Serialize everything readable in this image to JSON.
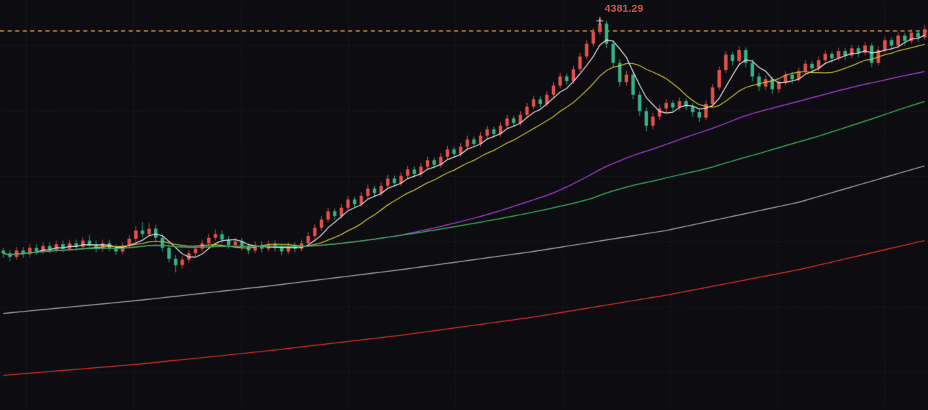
{
  "chart_data": {
    "type": "candlestick",
    "title": "",
    "xlabel": "",
    "ylabel": "",
    "ylim": [
      3950,
      4400
    ],
    "legend_position": "none",
    "grid": {
      "on": true,
      "x_start": 38,
      "x_step": 156,
      "y_start": 66,
      "y_step": 95
    },
    "colors": {
      "background": "#0d0d11",
      "grid": "#2b2b33",
      "up": "#e4514b",
      "down": "#36b383",
      "reference_line": "#f2a33c",
      "peak_label": "#d5544c",
      "peak_marker": "#f0f0f0"
    },
    "reference_line": {
      "price": 4366,
      "style": "dashed"
    },
    "annotations": {
      "peak_label": {
        "text": "4381.29",
        "candle_index": 90,
        "price": 4381.29
      },
      "peak_marker": {
        "candle_index": 90,
        "price": 4377,
        "glyph": "+"
      }
    },
    "moving_averages": [
      {
        "name": "MA5",
        "period": 5,
        "color": "#ededed",
        "width": 1.3
      },
      {
        "name": "MA13",
        "period": 13,
        "color": "#d4c735",
        "width": 1.3
      },
      {
        "name": "MA60",
        "period": 60,
        "color": "#a43bd4",
        "width": 1.5
      },
      {
        "name": "MA90",
        "period": 90,
        "color": "#33b457",
        "width": 1.5
      }
    ],
    "long_ma_lines": [
      {
        "name": "gray-long-ma",
        "color": "#aaaaae",
        "width": 1.4,
        "points": [
          [
            0,
            4056
          ],
          [
            20,
            4070
          ],
          [
            40,
            4086
          ],
          [
            60,
            4104
          ],
          [
            80,
            4124
          ],
          [
            100,
            4147
          ],
          [
            120,
            4178
          ],
          [
            139,
            4218
          ]
        ]
      },
      {
        "name": "red-long-ma",
        "color": "#e03028",
        "width": 1.4,
        "points": [
          [
            0,
            3988
          ],
          [
            20,
            4000
          ],
          [
            40,
            4015
          ],
          [
            60,
            4032
          ],
          [
            80,
            4052
          ],
          [
            100,
            4076
          ],
          [
            120,
            4104
          ],
          [
            139,
            4136
          ]
        ]
      }
    ],
    "candles": [
      [
        4125,
        4128,
        4117,
        4122
      ],
      [
        4122,
        4126,
        4113,
        4118
      ],
      [
        4118,
        4129,
        4115,
        4125
      ],
      [
        4125,
        4129,
        4117,
        4121
      ],
      [
        4121,
        4132,
        4118,
        4128
      ],
      [
        4128,
        4132,
        4120,
        4124
      ],
      [
        4124,
        4134,
        4121,
        4130
      ],
      [
        4130,
        4134,
        4122,
        4126
      ],
      [
        4126,
        4136,
        4123,
        4132
      ],
      [
        4132,
        4136,
        4123,
        4127
      ],
      [
        4127,
        4137,
        4124,
        4133
      ],
      [
        4133,
        4137,
        4125,
        4129
      ],
      [
        4129,
        4140,
        4126,
        4136
      ],
      [
        4136,
        4142,
        4128,
        4131
      ],
      [
        4131,
        4136,
        4123,
        4127
      ],
      [
        4127,
        4137,
        4124,
        4133
      ],
      [
        4133,
        4137,
        4124,
        4128
      ],
      [
        4128,
        4132,
        4120,
        4124
      ],
      [
        4124,
        4134,
        4121,
        4130
      ],
      [
        4130,
        4142,
        4127,
        4138
      ],
      [
        4138,
        4152,
        4135,
        4147
      ],
      [
        4147,
        4156,
        4139,
        4143
      ],
      [
        4143,
        4155,
        4140,
        4149
      ],
      [
        4149,
        4153,
        4135,
        4139
      ],
      [
        4139,
        4143,
        4124,
        4128
      ],
      [
        4128,
        4132,
        4112,
        4116
      ],
      [
        4116,
        4120,
        4101,
        4109
      ],
      [
        4109,
        4119,
        4105,
        4115
      ],
      [
        4115,
        4126,
        4112,
        4122
      ],
      [
        4122,
        4131,
        4119,
        4127
      ],
      [
        4127,
        4137,
        4124,
        4133
      ],
      [
        4133,
        4143,
        4130,
        4139
      ],
      [
        4139,
        4148,
        4136,
        4143
      ],
      [
        4143,
        4147,
        4133,
        4137
      ],
      [
        4137,
        4141,
        4127,
        4131
      ],
      [
        4131,
        4139,
        4128,
        4135
      ],
      [
        4135,
        4139,
        4125,
        4129
      ],
      [
        4129,
        4133,
        4121,
        4125
      ],
      [
        4125,
        4135,
        4122,
        4131
      ],
      [
        4131,
        4135,
        4123,
        4127
      ],
      [
        4127,
        4136,
        4124,
        4132
      ],
      [
        4132,
        4136,
        4124,
        4128
      ],
      [
        4128,
        4132,
        4120,
        4124
      ],
      [
        4124,
        4134,
        4121,
        4130
      ],
      [
        4130,
        4134,
        4123,
        4127
      ],
      [
        4127,
        4137,
        4124,
        4133
      ],
      [
        4133,
        4145,
        4130,
        4141
      ],
      [
        4141,
        4154,
        4138,
        4150
      ],
      [
        4150,
        4163,
        4147,
        4159
      ],
      [
        4159,
        4172,
        4156,
        4168
      ],
      [
        4168,
        4171,
        4159,
        4163
      ],
      [
        4163,
        4176,
        4160,
        4172
      ],
      [
        4172,
        4185,
        4169,
        4181
      ],
      [
        4181,
        4184,
        4172,
        4176
      ],
      [
        4176,
        4189,
        4173,
        4185
      ],
      [
        4185,
        4197,
        4182,
        4193
      ],
      [
        4193,
        4196,
        4184,
        4188
      ],
      [
        4188,
        4200,
        4185,
        4196
      ],
      [
        4196,
        4208,
        4193,
        4204
      ],
      [
        4204,
        4207,
        4195,
        4199
      ],
      [
        4199,
        4211,
        4196,
        4207
      ],
      [
        4207,
        4218,
        4204,
        4214
      ],
      [
        4214,
        4217,
        4205,
        4209
      ],
      [
        4209,
        4221,
        4206,
        4217
      ],
      [
        4217,
        4228,
        4214,
        4224
      ],
      [
        4224,
        4227,
        4215,
        4219
      ],
      [
        4219,
        4232,
        4216,
        4228
      ],
      [
        4228,
        4240,
        4225,
        4236
      ],
      [
        4236,
        4239,
        4227,
        4231
      ],
      [
        4231,
        4243,
        4228,
        4239
      ],
      [
        4239,
        4251,
        4236,
        4247
      ],
      [
        4247,
        4250,
        4238,
        4242
      ],
      [
        4242,
        4255,
        4239,
        4251
      ],
      [
        4251,
        4262,
        4248,
        4258
      ],
      [
        4258,
        4261,
        4249,
        4253
      ],
      [
        4253,
        4266,
        4250,
        4262
      ],
      [
        4262,
        4274,
        4259,
        4270
      ],
      [
        4270,
        4273,
        4261,
        4265
      ],
      [
        4265,
        4278,
        4262,
        4274
      ],
      [
        4274,
        4287,
        4271,
        4283
      ],
      [
        4283,
        4295,
        4280,
        4291
      ],
      [
        4291,
        4294,
        4282,
        4286
      ],
      [
        4286,
        4300,
        4283,
        4296
      ],
      [
        4296,
        4310,
        4293,
        4306
      ],
      [
        4306,
        4320,
        4303,
        4316
      ],
      [
        4316,
        4319,
        4307,
        4311
      ],
      [
        4311,
        4328,
        4308,
        4324
      ],
      [
        4324,
        4342,
        4321,
        4338
      ],
      [
        4338,
        4356,
        4335,
        4352
      ],
      [
        4352,
        4369,
        4349,
        4365
      ],
      [
        4365,
        4381.29,
        4362,
        4374
      ],
      [
        4374,
        4377,
        4347,
        4352
      ],
      [
        4352,
        4356,
        4326,
        4331
      ],
      [
        4331,
        4335,
        4305,
        4310
      ],
      [
        4310,
        4322,
        4306,
        4318
      ],
      [
        4318,
        4321,
        4291,
        4296
      ],
      [
        4296,
        4300,
        4273,
        4278
      ],
      [
        4278,
        4282,
        4256,
        4262
      ],
      [
        4262,
        4276,
        4258,
        4272
      ],
      [
        4272,
        4285,
        4268,
        4281
      ],
      [
        4281,
        4291,
        4277,
        4287
      ],
      [
        4287,
        4290,
        4278,
        4282
      ],
      [
        4282,
        4293,
        4279,
        4289
      ],
      [
        4289,
        4292,
        4279,
        4283
      ],
      [
        4283,
        4287,
        4272,
        4277
      ],
      [
        4277,
        4281,
        4266,
        4271
      ],
      [
        4271,
        4290,
        4268,
        4286
      ],
      [
        4286,
        4308,
        4283,
        4304
      ],
      [
        4304,
        4327,
        4301,
        4323
      ],
      [
        4323,
        4344,
        4320,
        4340
      ],
      [
        4340,
        4343,
        4328,
        4333
      ],
      [
        4333,
        4349,
        4330,
        4345
      ],
      [
        4345,
        4348,
        4326,
        4331
      ],
      [
        4331,
        4335,
        4311,
        4316
      ],
      [
        4316,
        4320,
        4300,
        4305
      ],
      [
        4305,
        4317,
        4301,
        4313
      ],
      [
        4313,
        4316,
        4297,
        4302
      ],
      [
        4302,
        4314,
        4298,
        4310
      ],
      [
        4310,
        4322,
        4306,
        4318
      ],
      [
        4318,
        4321,
        4308,
        4313
      ],
      [
        4313,
        4326,
        4310,
        4322
      ],
      [
        4322,
        4334,
        4319,
        4330
      ],
      [
        4330,
        4333,
        4320,
        4325
      ],
      [
        4325,
        4338,
        4322,
        4334
      ],
      [
        4334,
        4345,
        4331,
        4341
      ],
      [
        4341,
        4344,
        4331,
        4336
      ],
      [
        4336,
        4348,
        4333,
        4344
      ],
      [
        4344,
        4347,
        4334,
        4339
      ],
      [
        4339,
        4351,
        4336,
        4347
      ],
      [
        4347,
        4350,
        4337,
        4342
      ],
      [
        4342,
        4354,
        4339,
        4350
      ],
      [
        4350,
        4353,
        4326,
        4331
      ],
      [
        4331,
        4349,
        4328,
        4345
      ],
      [
        4345,
        4360,
        4342,
        4356
      ],
      [
        4356,
        4359,
        4345,
        4350
      ],
      [
        4350,
        4365,
        4347,
        4361
      ],
      [
        4361,
        4364,
        4350,
        4355
      ],
      [
        4355,
        4368,
        4352,
        4364
      ],
      [
        4364,
        4367,
        4354,
        4359
      ],
      [
        4359,
        4373,
        4356,
        4368
      ]
    ]
  }
}
